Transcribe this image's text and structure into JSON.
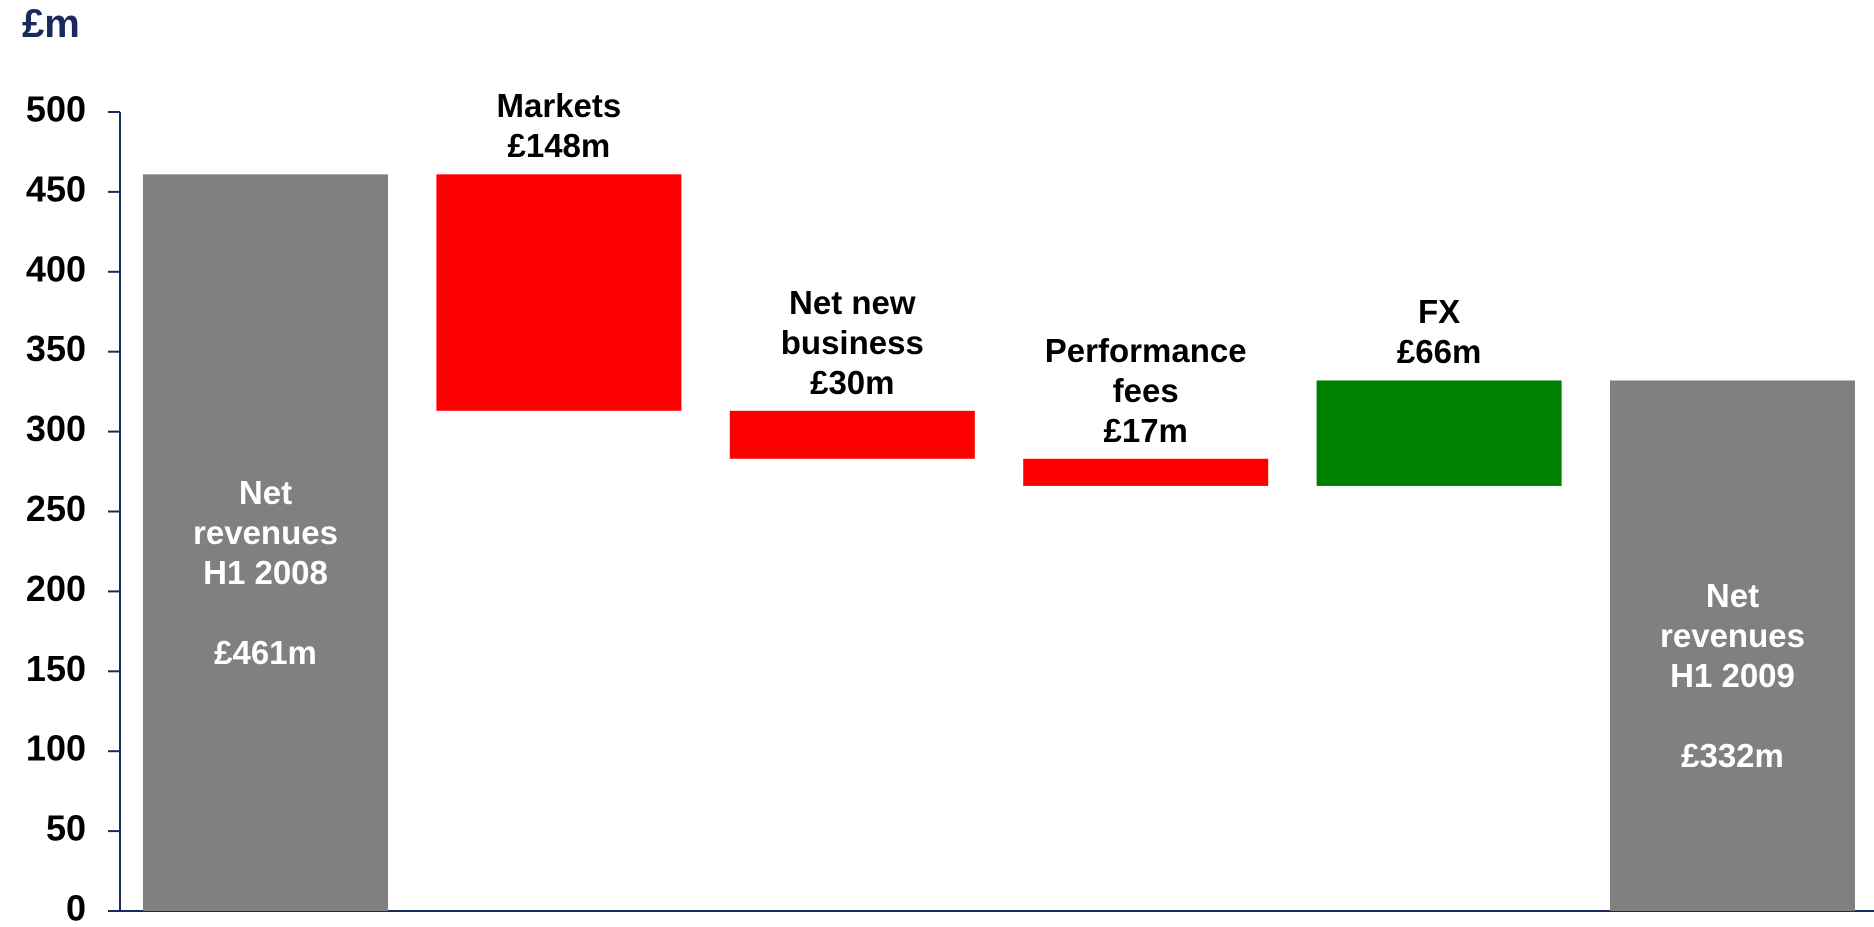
{
  "chart_data": {
    "type": "waterfall",
    "y_axis_title": "£m",
    "categories": [
      "Net revenues H1 2008",
      "Markets",
      "Net new business",
      "Performance fees",
      "FX",
      "Net revenues H1 2009"
    ],
    "values": [
      461,
      -148,
      -30,
      -17,
      66,
      332
    ],
    "value_labels": [
      "£461m",
      "£148m",
      "£30m",
      "£17m",
      "£66m",
      "£332m"
    ],
    "colors": [
      "#808080",
      "#ff0000",
      "#ff0000",
      "#ff0000",
      "#008000",
      "#808080"
    ],
    "ylim": [
      0,
      500
    ],
    "yticks": [
      0,
      50,
      100,
      150,
      200,
      250,
      300,
      350,
      400,
      450,
      500
    ],
    "grid": false
  }
}
